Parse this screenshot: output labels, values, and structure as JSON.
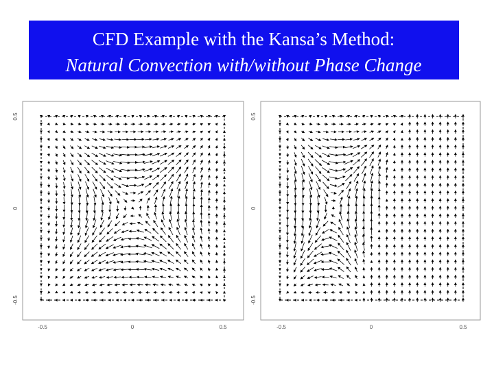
{
  "title": {
    "line1": "CFD Example with the Kansa’s Method:",
    "line2": "Natural Convection with/without Phase Change"
  },
  "plots": [
    {
      "y_labels": [
        "0.5",
        "0",
        "-0.5"
      ],
      "x_labels": [
        "-0.5",
        "0",
        "0.5"
      ]
    },
    {
      "y_labels": [
        "0.5",
        "0",
        "-0.5"
      ],
      "x_labels": [
        "-0.5",
        "0",
        "0.5"
      ]
    }
  ]
}
